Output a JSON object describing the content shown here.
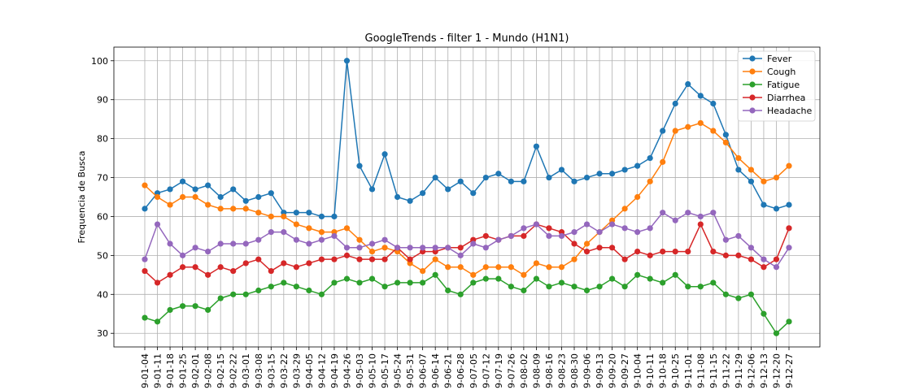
{
  "chart_data": {
    "type": "line",
    "title": "GoogleTrends - filter 1 - Mundo (H1N1)",
    "xlabel": "",
    "ylabel": "Frequencia de Busca",
    "ylim": [
      26.5,
      103.5
    ],
    "yticks": [
      30,
      40,
      50,
      60,
      70,
      80,
      90,
      100
    ],
    "grid": true,
    "legend_position": "top-right",
    "x": [
      "9-01-04",
      "9-01-11",
      "9-01-18",
      "9-01-25",
      "9-02-01",
      "9-02-08",
      "9-02-15",
      "9-02-22",
      "9-03-01",
      "9-03-08",
      "9-03-15",
      "9-03-22",
      "9-03-29",
      "9-04-05",
      "9-04-12",
      "9-04-19",
      "9-04-26",
      "9-05-03",
      "9-05-10",
      "9-05-17",
      "9-05-24",
      "9-05-31",
      "9-06-07",
      "9-06-14",
      "9-06-21",
      "9-06-28",
      "9-07-05",
      "9-07-12",
      "9-07-19",
      "9-07-26",
      "9-08-02",
      "9-08-09",
      "9-08-16",
      "9-08-23",
      "9-08-30",
      "9-09-06",
      "9-09-13",
      "9-09-20",
      "9-09-27",
      "9-10-04",
      "9-10-11",
      "9-10-18",
      "9-10-25",
      "9-11-01",
      "9-11-08",
      "9-11-15",
      "9-11-22",
      "9-11-29",
      "9-12-06",
      "9-12-13",
      "9-12-20",
      "9-12-27"
    ],
    "series": [
      {
        "name": "Fever",
        "color": "#1f77b4",
        "values": [
          62,
          66,
          67,
          69,
          67,
          68,
          65,
          67,
          64,
          65,
          66,
          61,
          61,
          61,
          60,
          60,
          100,
          73,
          67,
          76,
          65,
          64,
          66,
          70,
          67,
          69,
          66,
          70,
          71,
          69,
          69,
          78,
          70,
          72,
          69,
          70,
          71,
          71,
          72,
          73,
          75,
          82,
          89,
          94,
          91,
          89,
          81,
          72,
          69,
          63,
          62,
          63
        ]
      },
      {
        "name": "Cough",
        "color": "#ff7f0e",
        "values": [
          68,
          65,
          63,
          65,
          65,
          63,
          62,
          62,
          62,
          61,
          60,
          60,
          58,
          57,
          56,
          56,
          57,
          54,
          51,
          52,
          51,
          48,
          46,
          49,
          47,
          47,
          45,
          47,
          47,
          47,
          45,
          48,
          47,
          47,
          49,
          53,
          56,
          59,
          62,
          65,
          69,
          74,
          82,
          83,
          84,
          82,
          79,
          75,
          72,
          69,
          70,
          73
        ]
      },
      {
        "name": "Fatigue",
        "color": "#2ca02c",
        "values": [
          34,
          33,
          36,
          37,
          37,
          36,
          39,
          40,
          40,
          41,
          42,
          43,
          42,
          41,
          40,
          43,
          44,
          43,
          44,
          42,
          43,
          43,
          43,
          45,
          41,
          40,
          43,
          44,
          44,
          42,
          41,
          44,
          42,
          43,
          42,
          41,
          42,
          44,
          42,
          45,
          44,
          43,
          45,
          42,
          42,
          43,
          40,
          39,
          40,
          35,
          30,
          33
        ]
      },
      {
        "name": "Diarrhea",
        "color": "#d62728",
        "values": [
          46,
          43,
          45,
          47,
          47,
          45,
          47,
          46,
          48,
          49,
          46,
          48,
          47,
          48,
          49,
          49,
          50,
          49,
          49,
          49,
          52,
          49,
          51,
          51,
          52,
          52,
          54,
          55,
          54,
          55,
          55,
          58,
          57,
          56,
          53,
          51,
          52,
          52,
          49,
          51,
          50,
          51,
          51,
          51,
          58,
          51,
          50,
          50,
          49,
          47,
          49,
          57
        ]
      },
      {
        "name": "Headache",
        "color": "#9467bd",
        "values": [
          49,
          58,
          53,
          50,
          52,
          51,
          53,
          53,
          53,
          54,
          56,
          56,
          54,
          53,
          54,
          55,
          52,
          52,
          53,
          54,
          52,
          52,
          52,
          52,
          52,
          50,
          53,
          52,
          54,
          55,
          57,
          58,
          55,
          55,
          56,
          58,
          56,
          58,
          57,
          56,
          57,
          61,
          59,
          61,
          60,
          61,
          54,
          55,
          52,
          49,
          47,
          52
        ]
      }
    ]
  }
}
